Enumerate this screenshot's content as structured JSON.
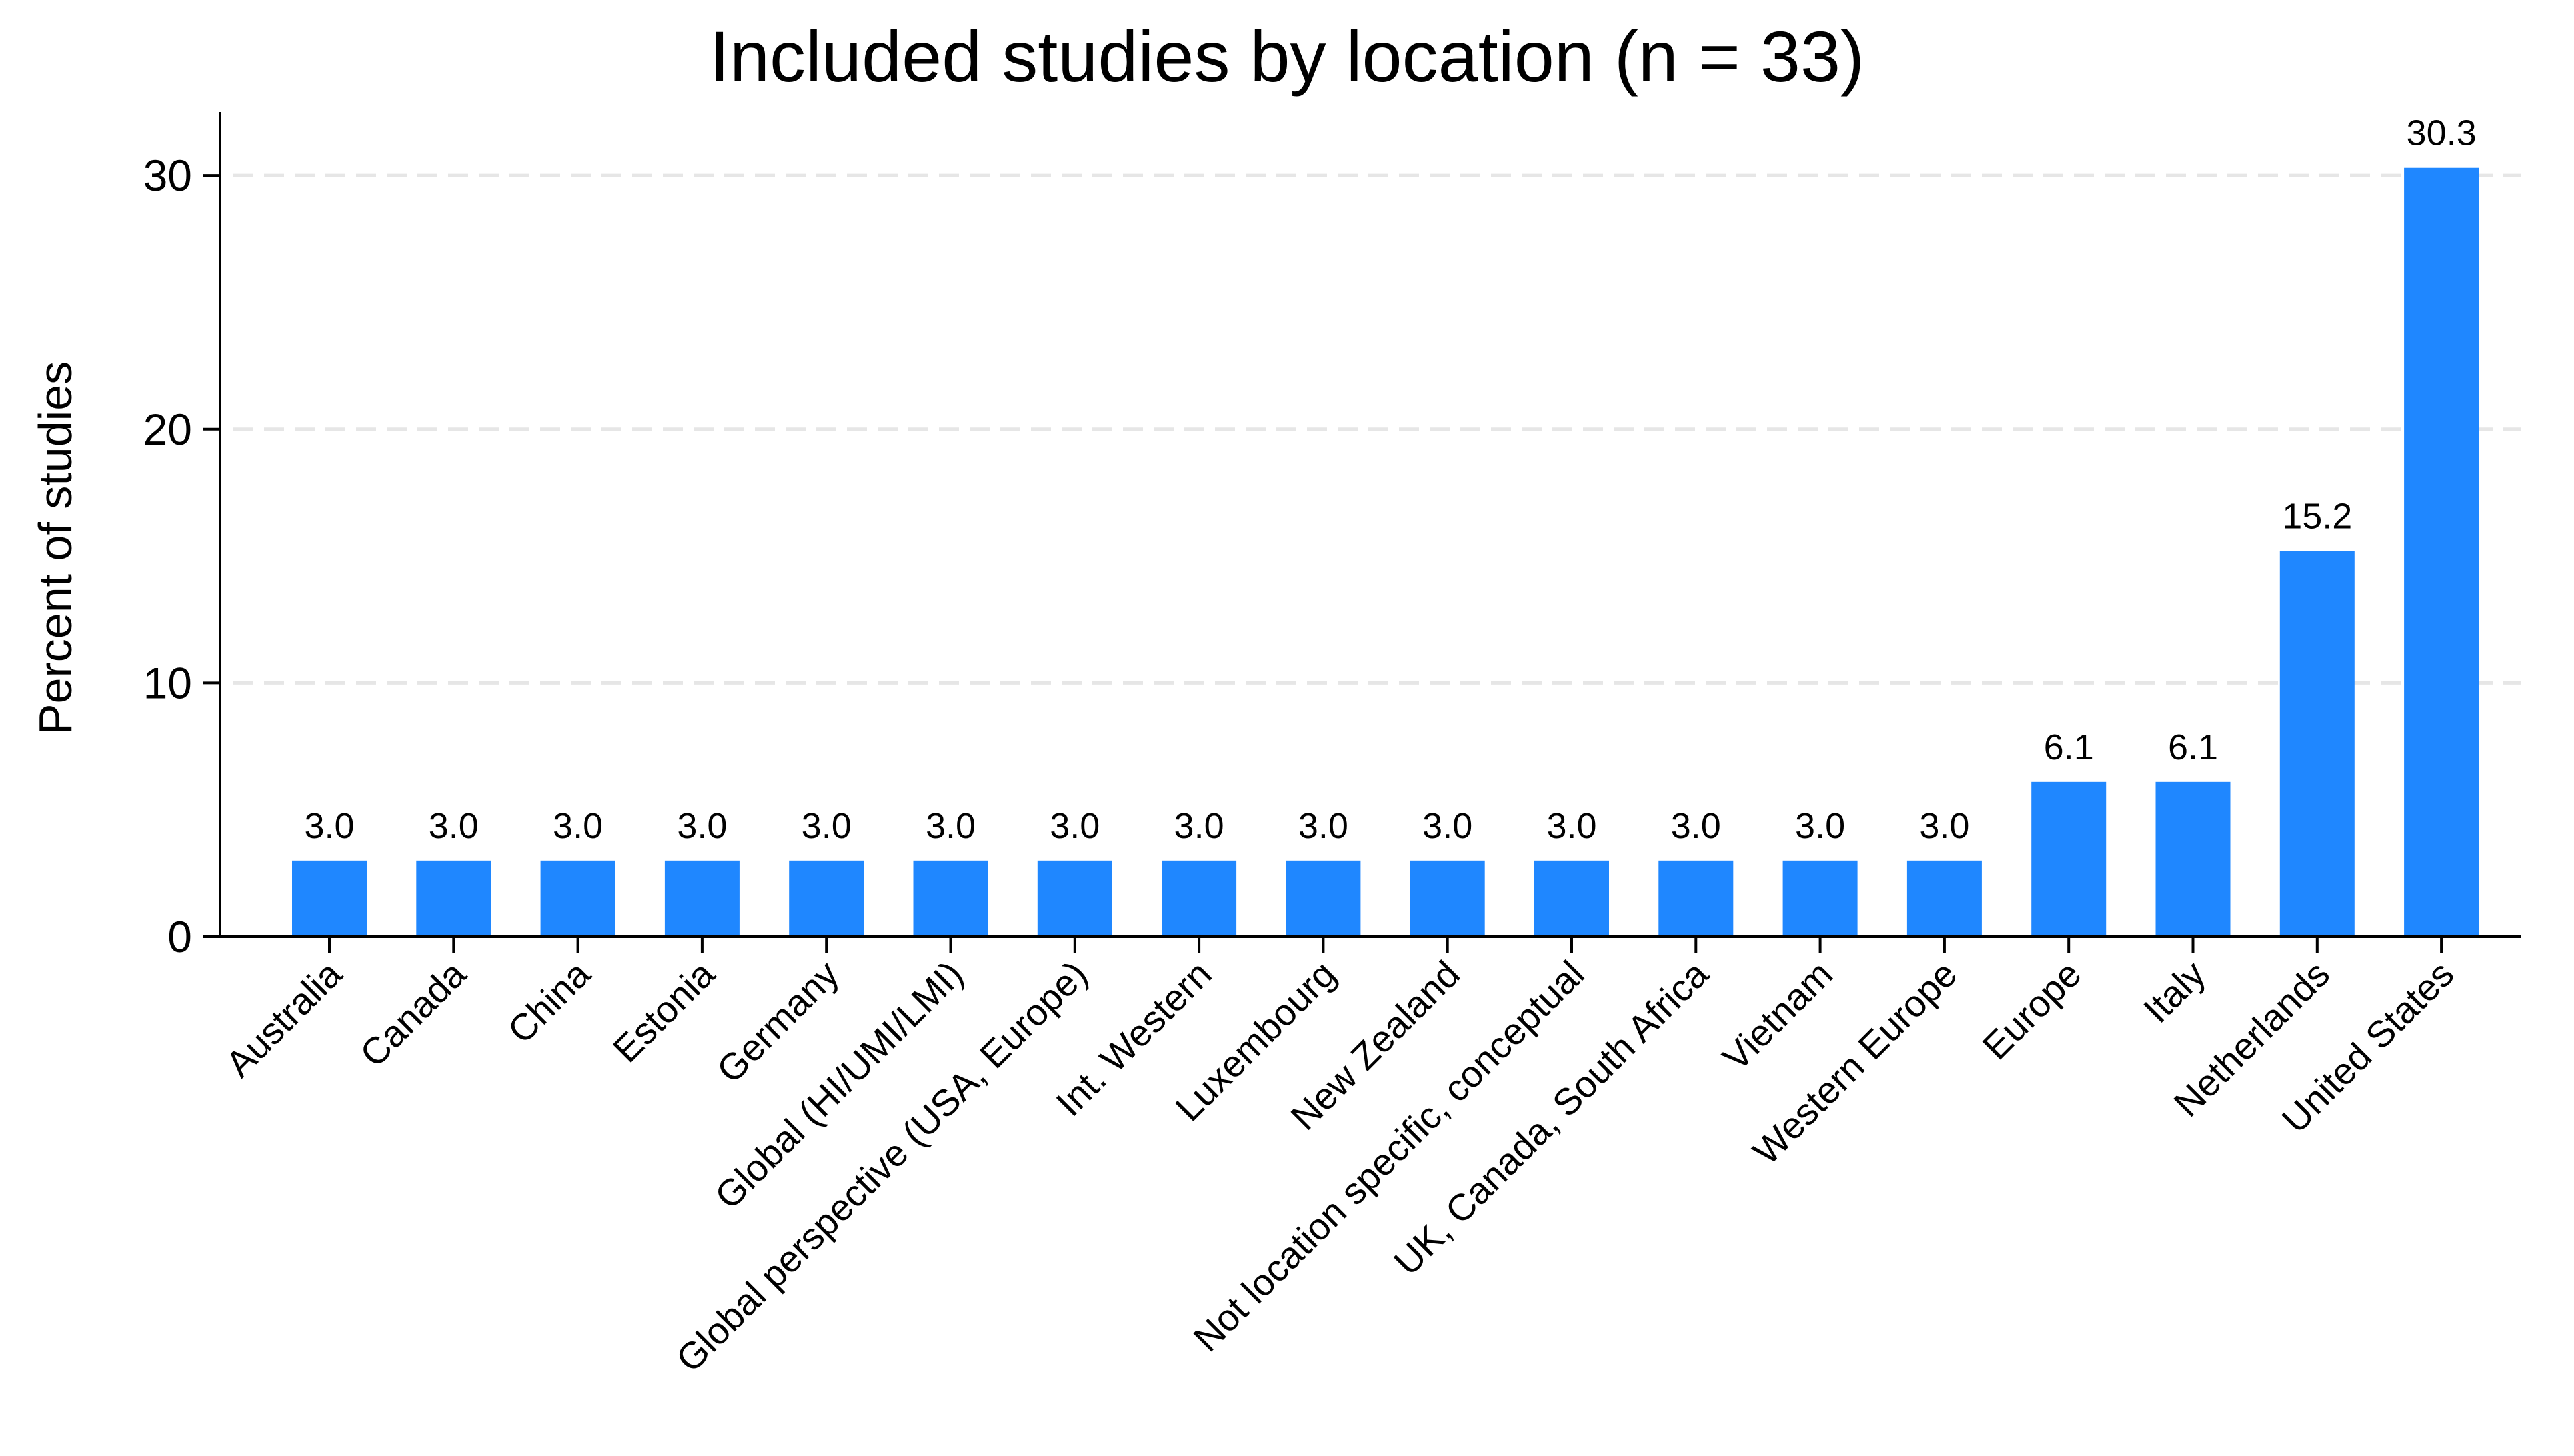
{
  "chart_data": {
    "type": "bar",
    "title": "Included studies by location (n = 33)",
    "xlabel": "",
    "ylabel": "Percent of studies",
    "ylim": [
      0,
      32.5
    ],
    "yticks": [
      0,
      10,
      20,
      30
    ],
    "grid": "y",
    "legend": "none",
    "bar_color": "#1f87ff",
    "grid_color": "#e6e6e6",
    "categories": [
      "Australia",
      "Canada",
      "China",
      "Estonia",
      "Germany",
      "Global (HI/UMI/LMI)",
      "Global perspective (USA, Europe)",
      "Int. Western",
      "Luxembourg",
      "New Zealand",
      "Not location specific, conceptual",
      "UK, Canada, South Africa",
      "Vietnam",
      "Western Europe",
      "Europe",
      "Italy",
      "Netherlands",
      "United States"
    ],
    "values": [
      3.0,
      3.0,
      3.0,
      3.0,
      3.0,
      3.0,
      3.0,
      3.0,
      3.0,
      3.0,
      3.0,
      3.0,
      3.0,
      3.0,
      6.1,
      6.1,
      15.2,
      30.3
    ],
    "data_labels": [
      "3.0",
      "3.0",
      "3.0",
      "3.0",
      "3.0",
      "3.0",
      "3.0",
      "3.0",
      "3.0",
      "3.0",
      "3.0",
      "3.0",
      "3.0",
      "3.0",
      "6.1",
      "6.1",
      "15.2",
      "30.3"
    ]
  }
}
